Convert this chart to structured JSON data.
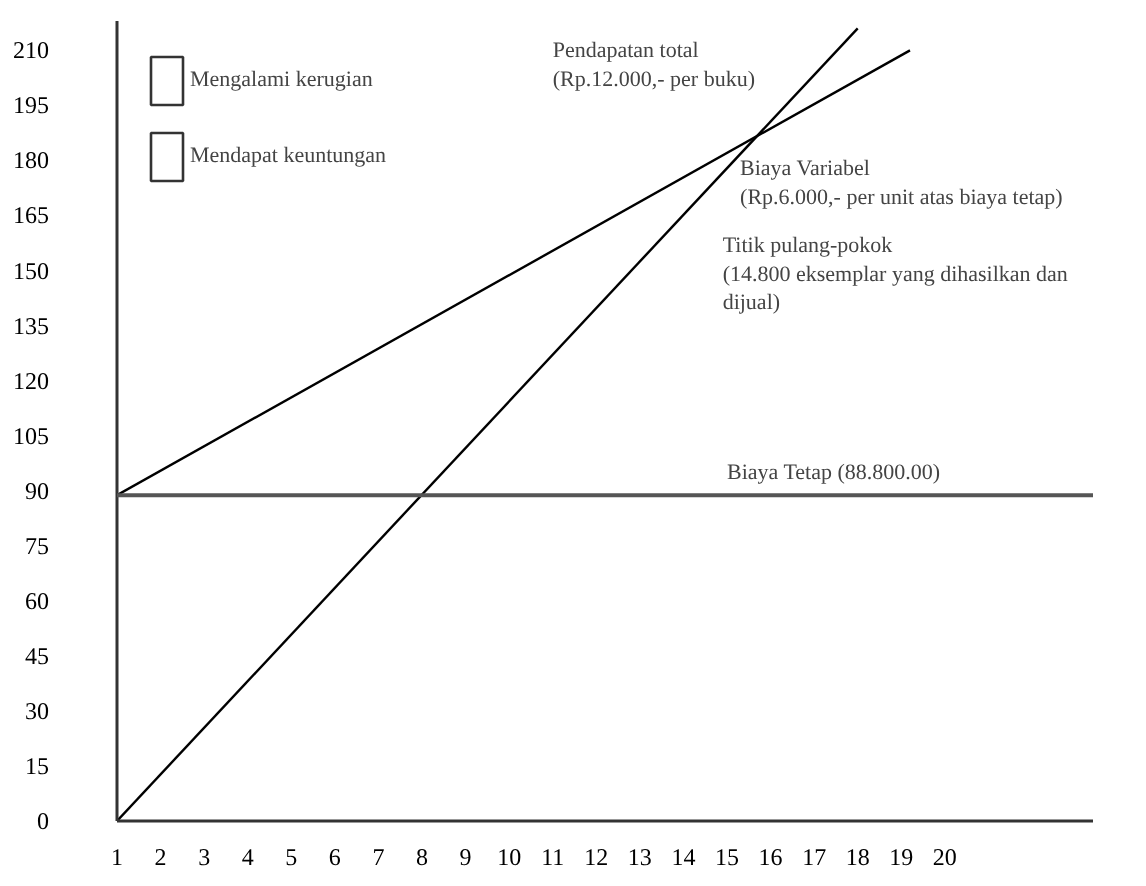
{
  "chart_data": {
    "type": "line",
    "x": [
      1,
      18
    ],
    "series": [
      {
        "color": "#000000",
        "values": [
          0,
          216
        ]
      },
      {
        "color": "#000000",
        "x": [
          1,
          19.2
        ],
        "values": [
          88.8,
          210
        ]
      },
      {
        "type": "area",
        "name": "Mengalami kerugian",
        "color": "#ffffff",
        "values": [
          null,
          null
        ]
      },
      {
        "type": "area",
        "name": "Mendapat keuntungan",
        "color": "#ffffff",
        "values": [
          null,
          null
        ]
      }
    ],
    "xlim": [
      1,
      23.4
    ],
    "ylim": [
      0,
      218
    ],
    "xticks": [
      1,
      2,
      3,
      4,
      5,
      6,
      7,
      8,
      9,
      10,
      11,
      12,
      13,
      14,
      15,
      16,
      17,
      18,
      19,
      20
    ],
    "yticks": [
      0,
      15,
      30,
      45,
      60,
      75,
      90,
      105,
      120,
      135,
      150,
      165,
      180,
      195,
      210
    ],
    "grid": false,
    "marker": "none",
    "line_style": "solid",
    "ref_lines": [
      {
        "axis": "y",
        "value": 88.8,
        "label": "Biaya Tetap (88.800.00)",
        "color": "#555555"
      }
    ],
    "legend": "top left",
    "annotations": [
      "Pendapatan total\n(Rp.12.000,- per buku)",
      "Biaya Variabel\n(Rp.6.000,- per unit atas biaya tetap)",
      "Titik pulang-pokok\n(14.800 eksemplar yang dihasilkan dan\n  dijual)"
    ]
  }
}
